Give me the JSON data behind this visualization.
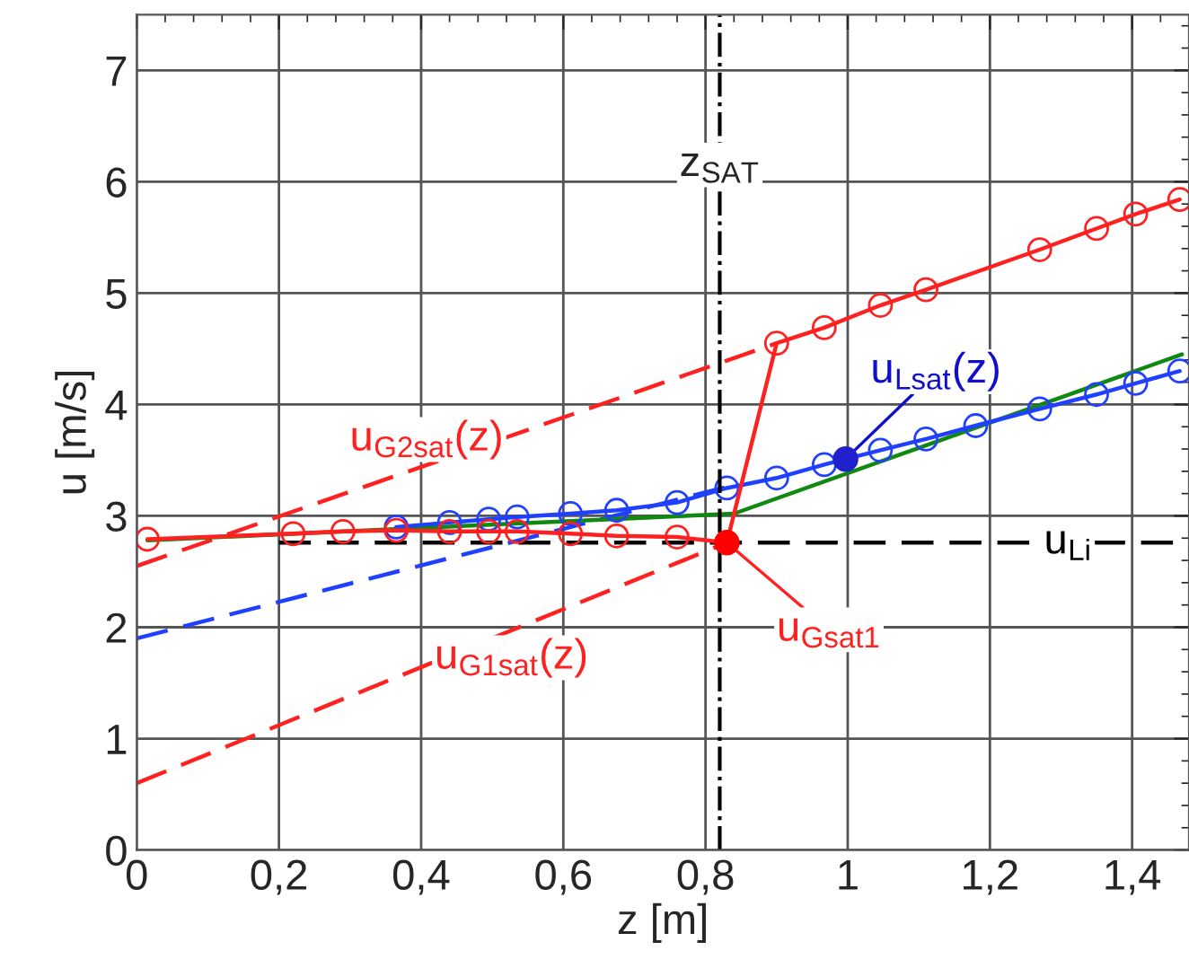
{
  "chart_data": {
    "type": "line",
    "xlabel": "z [m]",
    "ylabel": "u [m/s]",
    "xlim": [
      0,
      1.48
    ],
    "ylim": [
      0,
      7.5
    ],
    "xticks": [
      0,
      {
        "value": 0.2,
        "label": "0,2"
      },
      {
        "value": 0.4,
        "label": "0,4"
      },
      {
        "value": 0.6,
        "label": "0,6"
      },
      {
        "value": 0.8,
        "label": "0,8"
      },
      1,
      {
        "value": 1.2,
        "label": "1,2"
      },
      {
        "value": 1.4,
        "label": "1,4"
      }
    ],
    "yticks": [
      0,
      1,
      2,
      3,
      4,
      5,
      6,
      7
    ],
    "grid": true,
    "legend": false,
    "series": [
      {
        "color": "#ff2020",
        "line_style": "dashed",
        "x": [
          0,
          0.9
        ],
        "values": [
          2.55,
          4.55
        ]
      },
      {
        "color": "#ff2020",
        "line_style": "dashed",
        "x": [
          0,
          0.83
        ],
        "values": [
          0.6,
          2.76
        ]
      },
      {
        "color": "#2040ff",
        "line_style": "dashed",
        "x": [
          0,
          0.83
        ],
        "values": [
          1.9,
          3.26
        ]
      },
      {
        "color": "#000000",
        "line_style": "dashed",
        "x": [
          0.2,
          1.48
        ],
        "values": [
          2.76,
          2.76
        ]
      },
      {
        "color": "#118811",
        "line_style": "solid",
        "x": [
          0.015,
          0.84,
          1.47
        ],
        "values": [
          2.78,
          3.02,
          4.45
        ]
      },
      {
        "color": "#2040ff",
        "line_style": "solid",
        "marker": "circle",
        "x": [
          0.365,
          0.44,
          0.495,
          0.535,
          0.61,
          0.675,
          0.76,
          0.83,
          0.9,
          0.967,
          1.046,
          1.11,
          1.18,
          1.27,
          1.35,
          1.405,
          1.467
        ],
        "values": [
          2.9,
          2.94,
          2.97,
          2.99,
          3.02,
          3.05,
          3.12,
          3.25,
          3.34,
          3.46,
          3.59,
          3.69,
          3.81,
          3.96,
          4.09,
          4.19,
          4.3
        ]
      },
      {
        "color": "#ff2020",
        "line_style": "solid",
        "marker": "circle",
        "x": [
          0.015,
          0.22,
          0.29,
          0.365,
          0.44,
          0.495,
          0.535,
          0.61,
          0.675,
          0.76,
          0.83,
          0.9,
          0.967,
          1.046,
          1.11,
          1.27,
          1.35,
          1.405,
          1.467
        ],
        "values": [
          2.79,
          2.84,
          2.86,
          2.87,
          2.86,
          2.86,
          2.86,
          2.84,
          2.82,
          2.81,
          2.76,
          4.55,
          4.69,
          4.89,
          5.03,
          5.39,
          5.58,
          5.71,
          5.84
        ]
      },
      {
        "type": "scatter",
        "color": "#2020cc",
        "marker": "circle",
        "x": [
          0.997
        ],
        "values": [
          3.51
        ]
      },
      {
        "type": "scatter",
        "color": "#ff0000",
        "marker": "circle",
        "x": [
          0.83
        ],
        "values": [
          2.76
        ]
      }
    ],
    "ref_lines": [
      {
        "axis": "x",
        "value": 0.82,
        "label": "z$_{SAT}$",
        "color": "#000000",
        "line_style": "dashdot"
      }
    ],
    "annotations": [
      {
        "text": "u$_{G2sat}$(z)",
        "x": 0.45,
        "y": 3.55
      },
      {
        "text": "u$_{G1sat}$(z)",
        "x": 0.45,
        "y": 1.77
      },
      {
        "text": "u$_{Lsat}$(z)",
        "x": 0.997,
        "y": 3.51
      },
      {
        "text": "u$_{Gsat1}$",
        "x": 0.83,
        "y": 2.76
      },
      {
        "text": "u$_{Li}$",
        "x": 1.31,
        "y": 2.76
      }
    ]
  }
}
